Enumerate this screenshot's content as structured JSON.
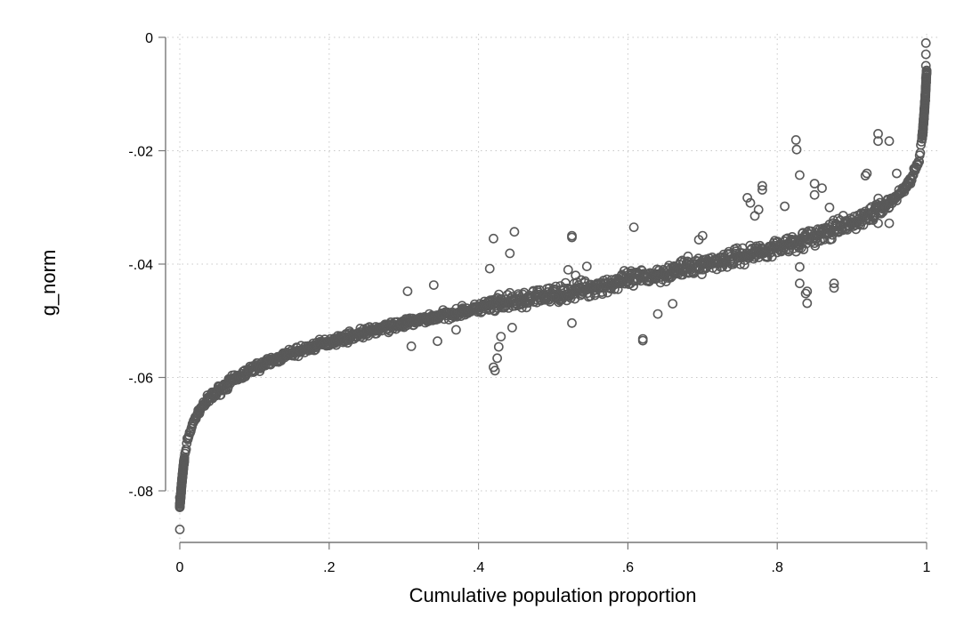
{
  "chart_data": {
    "type": "scatter",
    "xlabel": "Cumulative population proportion",
    "ylabel": "g_norm",
    "xlim": [
      0,
      1
    ],
    "ylim": [
      -0.09,
      0.0
    ],
    "x_ticks": [
      {
        "value": 0,
        "label": "0"
      },
      {
        "value": 0.2,
        "label": ".2"
      },
      {
        "value": 0.4,
        "label": ".4"
      },
      {
        "value": 0.6,
        "label": ".6"
      },
      {
        "value": 0.8,
        "label": ".8"
      },
      {
        "value": 1,
        "label": "1"
      }
    ],
    "y_ticks": [
      {
        "value": 0,
        "label": "0"
      },
      {
        "value": -0.02,
        "label": "-.02"
      },
      {
        "value": -0.04,
        "label": "-.04"
      },
      {
        "value": -0.06,
        "label": "-.06"
      },
      {
        "value": -0.08,
        "label": "-.08"
      }
    ],
    "grid": true,
    "marker": "hollow-circle",
    "marker_color": "#595959",
    "series": [
      {
        "trend": [
          [
            0.0,
            -0.0828
          ],
          [
            0.002,
            -0.0795
          ],
          [
            0.005,
            -0.0755
          ],
          [
            0.01,
            -0.071
          ],
          [
            0.02,
            -0.0673
          ],
          [
            0.03,
            -0.065
          ],
          [
            0.05,
            -0.0625
          ],
          [
            0.07,
            -0.0606
          ],
          [
            0.1,
            -0.0583
          ],
          [
            0.15,
            -0.0557
          ],
          [
            0.2,
            -0.0537
          ],
          [
            0.25,
            -0.052
          ],
          [
            0.3,
            -0.0505
          ],
          [
            0.35,
            -0.0491
          ],
          [
            0.4,
            -0.0478
          ],
          [
            0.45,
            -0.0466
          ],
          [
            0.5,
            -0.0454
          ],
          [
            0.55,
            -0.0442
          ],
          [
            0.6,
            -0.0429
          ],
          [
            0.65,
            -0.0415
          ],
          [
            0.7,
            -0.0401
          ],
          [
            0.75,
            -0.0386
          ],
          [
            0.8,
            -0.037
          ],
          [
            0.85,
            -0.0352
          ],
          [
            0.9,
            -0.0328
          ],
          [
            0.93,
            -0.0308
          ],
          [
            0.96,
            -0.0282
          ],
          [
            0.98,
            -0.025
          ],
          [
            0.99,
            -0.0215
          ],
          [
            0.995,
            -0.0165
          ],
          [
            0.998,
            -0.011
          ],
          [
            1.0,
            -0.006
          ]
        ],
        "outliers": [
          [
            0.0,
            -0.0868
          ],
          [
            0.0,
            -0.0822
          ],
          [
            0.0,
            -0.0812
          ],
          [
            0.999,
            -0.001
          ],
          [
            0.999,
            -0.003
          ],
          [
            0.999,
            -0.005
          ],
          [
            0.999,
            -0.0072
          ],
          [
            0.42,
            -0.0582
          ],
          [
            0.422,
            -0.0588
          ],
          [
            0.425,
            -0.0566
          ],
          [
            0.427,
            -0.0546
          ],
          [
            0.42,
            -0.0355
          ],
          [
            0.448,
            -0.0343
          ],
          [
            0.442,
            -0.0381
          ],
          [
            0.415,
            -0.0408
          ],
          [
            0.525,
            -0.035
          ],
          [
            0.525,
            -0.0353
          ],
          [
            0.525,
            -0.0504
          ],
          [
            0.62,
            -0.0532
          ],
          [
            0.62,
            -0.0535
          ],
          [
            0.608,
            -0.0335
          ],
          [
            0.78,
            -0.0269
          ],
          [
            0.78,
            -0.0262
          ],
          [
            0.81,
            -0.0298
          ],
          [
            0.82,
            -0.0352
          ],
          [
            0.825,
            -0.0181
          ],
          [
            0.826,
            -0.0198
          ],
          [
            0.83,
            -0.0243
          ],
          [
            0.85,
            -0.0258
          ],
          [
            0.85,
            -0.0278
          ],
          [
            0.86,
            -0.0266
          ],
          [
            0.83,
            -0.0434
          ],
          [
            0.838,
            -0.0452
          ],
          [
            0.84,
            -0.0448
          ],
          [
            0.84,
            -0.0469
          ],
          [
            0.876,
            -0.0434
          ],
          [
            0.876,
            -0.0442
          ],
          [
            0.83,
            -0.0405
          ],
          [
            0.935,
            -0.017
          ],
          [
            0.935,
            -0.0183
          ],
          [
            0.95,
            -0.0183
          ],
          [
            0.92,
            -0.024
          ],
          [
            0.918,
            -0.0244
          ],
          [
            0.935,
            -0.0328
          ],
          [
            0.95,
            -0.0328
          ],
          [
            0.76,
            -0.0283
          ],
          [
            0.764,
            -0.0292
          ],
          [
            0.775,
            -0.0304
          ],
          [
            0.77,
            -0.0315
          ],
          [
            0.52,
            -0.041
          ],
          [
            0.53,
            -0.042
          ],
          [
            0.545,
            -0.0404
          ],
          [
            0.43,
            -0.0528
          ],
          [
            0.445,
            -0.0512
          ],
          [
            0.37,
            -0.0516
          ],
          [
            0.31,
            -0.0545
          ],
          [
            0.345,
            -0.0536
          ],
          [
            0.305,
            -0.0448
          ],
          [
            0.34,
            -0.0437
          ],
          [
            0.64,
            -0.0488
          ],
          [
            0.66,
            -0.047
          ],
          [
            0.7,
            -0.035
          ],
          [
            0.695,
            -0.0357
          ],
          [
            0.87,
            -0.03
          ],
          [
            0.96,
            -0.024
          ]
        ]
      }
    ]
  }
}
